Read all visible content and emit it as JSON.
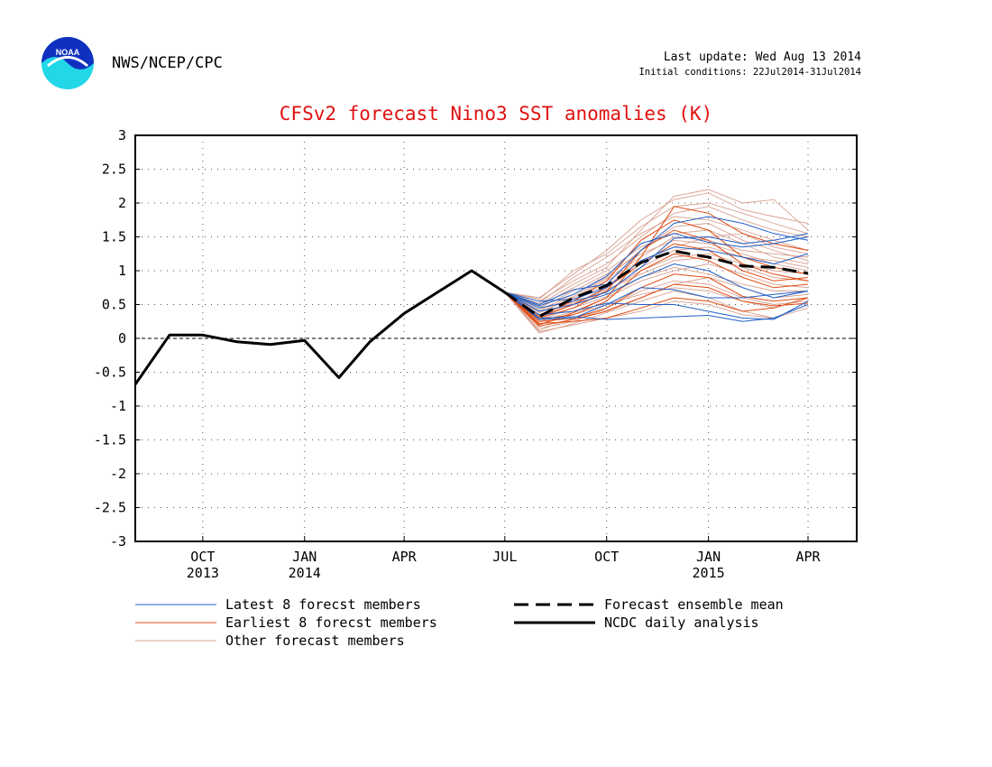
{
  "header": {
    "org": "NWS/NCEP/CPC",
    "last_update": "Last update: Wed Aug 13 2014",
    "initial_conditions": "Initial conditions: 22Jul2014-31Jul2014",
    "logo_text": "NOAA"
  },
  "chart_data": {
    "type": "line",
    "title": "CFSv2 forecast Nino3 SST anomalies (K)",
    "xlabel": "",
    "ylabel": "",
    "ylim": [
      -3,
      3
    ],
    "yticks": [
      -3,
      -2.5,
      -2,
      -1.5,
      -1,
      -0.5,
      0,
      0.5,
      1,
      1.5,
      2,
      2.5,
      3
    ],
    "ytick_labels": [
      "-3",
      "-2.5",
      "-2",
      "-1.5",
      "-1",
      "-0.5",
      "0",
      "0.5",
      "1",
      "1.5",
      "2",
      "2.5",
      "3"
    ],
    "xlim": [
      "2013-08-01",
      "2015-05-15"
    ],
    "xticks": [
      {
        "date": "2013-10-01",
        "label": "OCT",
        "year": "2013"
      },
      {
        "date": "2014-01-01",
        "label": "JAN",
        "year": "2014"
      },
      {
        "date": "2014-04-01",
        "label": "APR",
        "year": ""
      },
      {
        "date": "2014-07-01",
        "label": "JUL",
        "year": ""
      },
      {
        "date": "2014-10-01",
        "label": "OCT",
        "year": ""
      },
      {
        "date": "2015-01-01",
        "label": "JAN",
        "year": "2015"
      },
      {
        "date": "2015-04-01",
        "label": "APR",
        "year": ""
      }
    ],
    "grid": true,
    "zero_line": true,
    "colors": {
      "latest": "#2060c8",
      "earliest": "#e04a10",
      "other": "#d8a090",
      "mean": "#000000",
      "observed": "#000000"
    },
    "series": [
      {
        "name": "NCDC daily analysis",
        "role": "observed",
        "x": [
          "2013-08-01",
          "2013-09-01",
          "2013-10-01",
          "2013-11-01",
          "2013-12-01",
          "2014-01-01",
          "2014-02-01",
          "2014-03-01",
          "2014-04-01",
          "2014-05-01",
          "2014-06-01",
          "2014-07-01"
        ],
        "y": [
          -0.68,
          0.05,
          0.05,
          -0.05,
          -0.09,
          -0.03,
          -0.58,
          -0.05,
          0.37,
          0.68,
          1.0,
          0.68
        ]
      },
      {
        "name": "Forecast ensemble mean",
        "role": "mean",
        "x": [
          "2014-07-01",
          "2014-08-01",
          "2014-09-01",
          "2014-10-01",
          "2014-11-01",
          "2014-12-01",
          "2015-01-01",
          "2015-02-01",
          "2015-03-01",
          "2015-04-01"
        ],
        "y": [
          0.68,
          0.32,
          0.6,
          0.78,
          1.12,
          1.29,
          1.2,
          1.07,
          1.05,
          0.96
        ]
      }
    ],
    "forecast_members": {
      "x": [
        "2014-07-01",
        "2014-08-01",
        "2014-09-01",
        "2014-10-01",
        "2014-11-01",
        "2014-12-01",
        "2015-01-01",
        "2015-02-01",
        "2015-03-01",
        "2015-04-01"
      ],
      "latest": [
        [
          0.68,
          0.5,
          0.72,
          0.8,
          1.3,
          1.7,
          1.8,
          1.7,
          1.55,
          1.45
        ],
        [
          0.68,
          0.45,
          0.55,
          0.68,
          1.05,
          1.48,
          1.5,
          1.4,
          1.45,
          1.55
        ],
        [
          0.68,
          0.35,
          0.4,
          0.52,
          0.5,
          0.5,
          0.4,
          0.3,
          0.28,
          0.55
        ],
        [
          0.68,
          0.3,
          0.32,
          0.28,
          0.3,
          0.32,
          0.34,
          0.25,
          0.3,
          0.5
        ],
        [
          0.68,
          0.4,
          0.5,
          0.65,
          0.9,
          1.1,
          1.0,
          0.75,
          0.6,
          0.7
        ],
        [
          0.68,
          0.55,
          0.58,
          0.75,
          1.15,
          1.35,
          1.3,
          1.2,
          1.1,
          1.25
        ],
        [
          0.68,
          0.28,
          0.3,
          0.5,
          0.75,
          0.72,
          0.6,
          0.6,
          0.65,
          0.7
        ],
        [
          0.68,
          0.48,
          0.65,
          0.92,
          1.4,
          1.55,
          1.42,
          1.35,
          1.4,
          1.5
        ]
      ],
      "earliest": [
        [
          0.68,
          0.2,
          0.38,
          0.6,
          1.2,
          1.95,
          1.85,
          1.55,
          1.4,
          1.3
        ],
        [
          0.68,
          0.25,
          0.3,
          0.45,
          0.75,
          0.95,
          0.9,
          0.62,
          0.55,
          0.6
        ],
        [
          0.68,
          0.3,
          0.45,
          0.7,
          1.3,
          1.6,
          1.45,
          1.1,
          0.95,
          0.85
        ],
        [
          0.68,
          0.22,
          0.25,
          0.3,
          0.45,
          0.6,
          0.55,
          0.4,
          0.45,
          0.6
        ],
        [
          0.68,
          0.35,
          0.55,
          0.85,
          1.45,
          1.75,
          1.6,
          1.2,
          1.05,
          0.95
        ],
        [
          0.68,
          0.28,
          0.35,
          0.55,
          1.0,
          1.25,
          1.15,
          0.9,
          0.75,
          0.8
        ],
        [
          0.68,
          0.18,
          0.28,
          0.4,
          0.6,
          0.8,
          0.75,
          0.55,
          0.48,
          0.52
        ],
        [
          0.68,
          0.32,
          0.5,
          0.75,
          1.1,
          1.4,
          1.3,
          1.0,
          0.85,
          0.9
        ]
      ],
      "other": [
        [
          0.68,
          0.6,
          0.95,
          1.3,
          1.75,
          2.05,
          2.15,
          1.9,
          1.8,
          1.7
        ],
        [
          0.68,
          0.1,
          0.2,
          0.3,
          0.4,
          0.55,
          0.5,
          0.35,
          0.3,
          0.45
        ],
        [
          0.68,
          0.55,
          0.85,
          1.1,
          1.5,
          1.85,
          1.95,
          1.75,
          1.6,
          1.5
        ],
        [
          0.68,
          0.25,
          0.4,
          0.6,
          0.85,
          1.0,
          1.1,
          0.95,
          0.8,
          0.75
        ],
        [
          0.68,
          0.45,
          0.7,
          0.95,
          1.25,
          1.45,
          1.4,
          1.25,
          1.1,
          1.0
        ],
        [
          0.68,
          0.15,
          0.25,
          0.45,
          0.7,
          0.85,
          0.8,
          0.6,
          0.5,
          0.55
        ],
        [
          0.68,
          0.5,
          0.8,
          1.05,
          1.6,
          2.1,
          2.2,
          2.0,
          2.05,
          1.6
        ],
        [
          0.68,
          0.3,
          0.5,
          0.7,
          1.0,
          1.2,
          1.25,
          1.1,
          1.0,
          0.95
        ],
        [
          0.68,
          0.38,
          0.6,
          0.85,
          1.15,
          1.35,
          1.5,
          1.55,
          1.35,
          1.25
        ],
        [
          0.68,
          0.2,
          0.35,
          0.5,
          0.65,
          0.75,
          0.7,
          0.55,
          0.45,
          0.6
        ],
        [
          0.68,
          0.42,
          0.65,
          0.9,
          1.3,
          1.65,
          1.7,
          1.45,
          1.3,
          1.15
        ],
        [
          0.68,
          0.08,
          0.22,
          0.38,
          0.55,
          0.7,
          0.6,
          0.4,
          0.3,
          0.5
        ],
        [
          0.68,
          0.33,
          0.55,
          0.8,
          1.05,
          1.3,
          1.35,
          1.2,
          1.15,
          1.05
        ],
        [
          0.68,
          0.52,
          0.9,
          1.2,
          1.55,
          1.8,
          1.75,
          1.6,
          1.45,
          1.3
        ],
        [
          0.68,
          0.27,
          0.45,
          0.62,
          0.9,
          1.05,
          0.95,
          0.8,
          0.7,
          0.7
        ],
        [
          0.68,
          0.47,
          0.75,
          1.0,
          1.35,
          1.55,
          1.6,
          1.4,
          1.2,
          1.1
        ],
        [
          0.68,
          0.12,
          0.3,
          0.42,
          0.6,
          0.8,
          0.9,
          0.75,
          0.6,
          0.65
        ],
        [
          0.68,
          0.4,
          0.62,
          0.88,
          1.2,
          1.5,
          1.45,
          1.3,
          1.25,
          1.2
        ],
        [
          0.68,
          0.35,
          0.52,
          0.72,
          0.95,
          1.15,
          1.2,
          1.05,
          0.9,
          0.85
        ],
        [
          0.68,
          0.58,
          1.0,
          1.25,
          1.65,
          1.95,
          2.0,
          1.85,
          1.7,
          1.55
        ]
      ]
    },
    "legend": {
      "latest": "Latest 8 forecst members",
      "earliest": "Earliest 8 forecst members",
      "other": "Other forecast members",
      "mean": "Forecast ensemble mean",
      "observed": "NCDC daily analysis"
    }
  }
}
